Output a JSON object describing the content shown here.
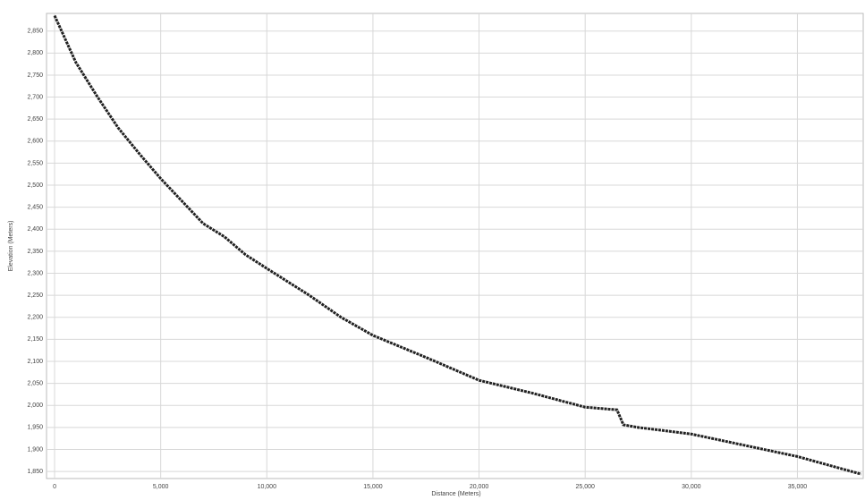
{
  "chart_data": {
    "type": "line",
    "x_label": "Distance (Meters)",
    "y_label": "Elevation (Meters)",
    "x": [
      0,
      1000,
      2000,
      3000,
      4000,
      5000,
      6000,
      7000,
      8000,
      9000,
      10000,
      12000,
      13500,
      15000,
      17500,
      20000,
      22500,
      25000,
      26500,
      26800,
      27500,
      30000,
      35000,
      38000
    ],
    "series": [
      {
        "name": "Elevation",
        "color": "#222222",
        "values": [
          2885,
          2779,
          2702,
          2630,
          2571,
          2515,
          2464,
          2413,
          2383,
          2342,
          2311,
          2250,
          2200,
          2159,
          2109,
          2057,
          2028,
          1996,
          1990,
          1956,
          1950,
          1935,
          1884,
          1844
        ]
      }
    ],
    "xlim": [
      -380,
      38100
    ],
    "ylim": [
      1834,
      2890
    ],
    "xticks": [
      0,
      {
        "value": 5000,
        "label": "5,000"
      },
      {
        "value": 10000,
        "label": "10,000"
      },
      {
        "value": 15000,
        "label": "15,000"
      },
      {
        "value": 20000,
        "label": "20,000"
      },
      {
        "value": 25000,
        "label": "25,000"
      },
      {
        "value": 30000,
        "label": "30,000"
      },
      {
        "value": 35000,
        "label": "35,000"
      }
    ],
    "yticks": [
      {
        "value": 1850,
        "label": "1,850"
      },
      {
        "value": 1900,
        "label": "1,900"
      },
      {
        "value": 1950,
        "label": "1,950"
      },
      {
        "value": 2000,
        "label": "2,000"
      },
      {
        "value": 2050,
        "label": "2,050"
      },
      {
        "value": 2100,
        "label": "2,100"
      },
      {
        "value": 2150,
        "label": "2,150"
      },
      {
        "value": 2200,
        "label": "2,200"
      },
      {
        "value": 2250,
        "label": "2,250"
      },
      {
        "value": 2300,
        "label": "2,300"
      },
      {
        "value": 2350,
        "label": "2,350"
      },
      {
        "value": 2400,
        "label": "2,400"
      },
      {
        "value": 2450,
        "label": "2,450"
      },
      {
        "value": 2500,
        "label": "2,500"
      },
      {
        "value": 2550,
        "label": "2,550"
      },
      {
        "value": 2600,
        "label": "2,600"
      },
      {
        "value": 2650,
        "label": "2,650"
      },
      {
        "value": 2700,
        "label": "2,700"
      },
      {
        "value": 2750,
        "label": "2,750"
      },
      {
        "value": 2800,
        "label": "2,800"
      },
      {
        "value": 2850,
        "label": "2,850"
      }
    ],
    "grid": true
  }
}
